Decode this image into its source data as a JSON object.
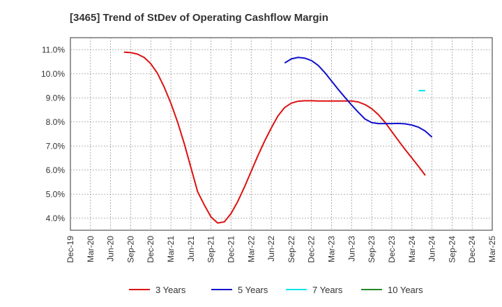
{
  "chart_data": {
    "type": "line",
    "title": "[3465]  Trend of StDev of Operating Cashflow Margin",
    "xlabel": "",
    "ylabel": "",
    "x_ticks": [
      "Dec-19",
      "Mar-20",
      "Jun-20",
      "Sep-20",
      "Dec-20",
      "Mar-21",
      "Jun-21",
      "Sep-21",
      "Dec-21",
      "Mar-22",
      "Jun-22",
      "Sep-22",
      "Dec-22",
      "Mar-23",
      "Jun-23",
      "Sep-23",
      "Dec-23",
      "Mar-24",
      "Jun-24",
      "Sep-24",
      "Dec-24",
      "Mar-25"
    ],
    "y_ticks": [
      "4.0%",
      "5.0%",
      "6.0%",
      "7.0%",
      "8.0%",
      "9.0%",
      "10.0%",
      "11.0%"
    ],
    "y_tick_values": [
      4,
      5,
      6,
      7,
      8,
      9,
      10,
      11
    ],
    "ylim": [
      3.5,
      11.5
    ],
    "grid": true,
    "legend_position": "bottom",
    "series": [
      {
        "name": "3 Years",
        "color": "#dd1111",
        "points": [
          [
            8,
            10.9
          ],
          [
            9,
            10.88
          ],
          [
            10,
            10.82
          ],
          [
            11,
            10.68
          ],
          [
            12,
            10.42
          ],
          [
            13,
            10.02
          ],
          [
            14,
            9.45
          ],
          [
            15,
            8.78
          ],
          [
            16,
            8.0
          ],
          [
            17,
            7.1
          ],
          [
            18,
            6.1
          ],
          [
            19,
            5.1
          ],
          [
            20,
            4.55
          ],
          [
            21,
            4.05
          ],
          [
            22,
            3.8
          ],
          [
            23,
            3.85
          ],
          [
            24,
            4.2
          ],
          [
            25,
            4.7
          ],
          [
            26,
            5.3
          ],
          [
            27,
            5.95
          ],
          [
            28,
            6.6
          ],
          [
            29,
            7.2
          ],
          [
            30,
            7.75
          ],
          [
            31,
            8.25
          ],
          [
            32,
            8.6
          ],
          [
            33,
            8.78
          ],
          [
            34,
            8.86
          ],
          [
            35,
            8.88
          ],
          [
            36,
            8.88
          ],
          [
            37,
            8.87
          ],
          [
            38,
            8.87
          ],
          [
            39,
            8.87
          ],
          [
            40,
            8.87
          ],
          [
            41,
            8.87
          ],
          [
            42,
            8.87
          ],
          [
            43,
            8.83
          ],
          [
            44,
            8.72
          ],
          [
            45,
            8.55
          ],
          [
            46,
            8.3
          ],
          [
            47,
            7.98
          ],
          [
            48,
            7.6
          ],
          [
            49,
            7.22
          ],
          [
            50,
            6.85
          ],
          [
            51,
            6.5
          ],
          [
            52,
            6.15
          ],
          [
            53,
            5.78
          ]
        ]
      },
      {
        "name": "5 Years",
        "color": "#1111cc",
        "points": [
          [
            32,
            10.45
          ],
          [
            33,
            10.62
          ],
          [
            34,
            10.68
          ],
          [
            35,
            10.65
          ],
          [
            36,
            10.55
          ],
          [
            37,
            10.35
          ],
          [
            38,
            10.05
          ],
          [
            39,
            9.7
          ],
          [
            40,
            9.35
          ],
          [
            41,
            9.02
          ],
          [
            42,
            8.7
          ],
          [
            43,
            8.4
          ],
          [
            44,
            8.12
          ],
          [
            45,
            7.97
          ],
          [
            46,
            7.93
          ],
          [
            47,
            7.93
          ],
          [
            48,
            7.93
          ],
          [
            49,
            7.94
          ],
          [
            50,
            7.92
          ],
          [
            51,
            7.87
          ],
          [
            52,
            7.78
          ],
          [
            53,
            7.62
          ],
          [
            54,
            7.37
          ]
        ]
      },
      {
        "name": "7 Years",
        "color": "#00e5ee",
        "points": [
          [
            52,
            9.3
          ],
          [
            53,
            9.3
          ]
        ]
      },
      {
        "name": "10 Years",
        "color": "#228822",
        "points": []
      }
    ]
  }
}
